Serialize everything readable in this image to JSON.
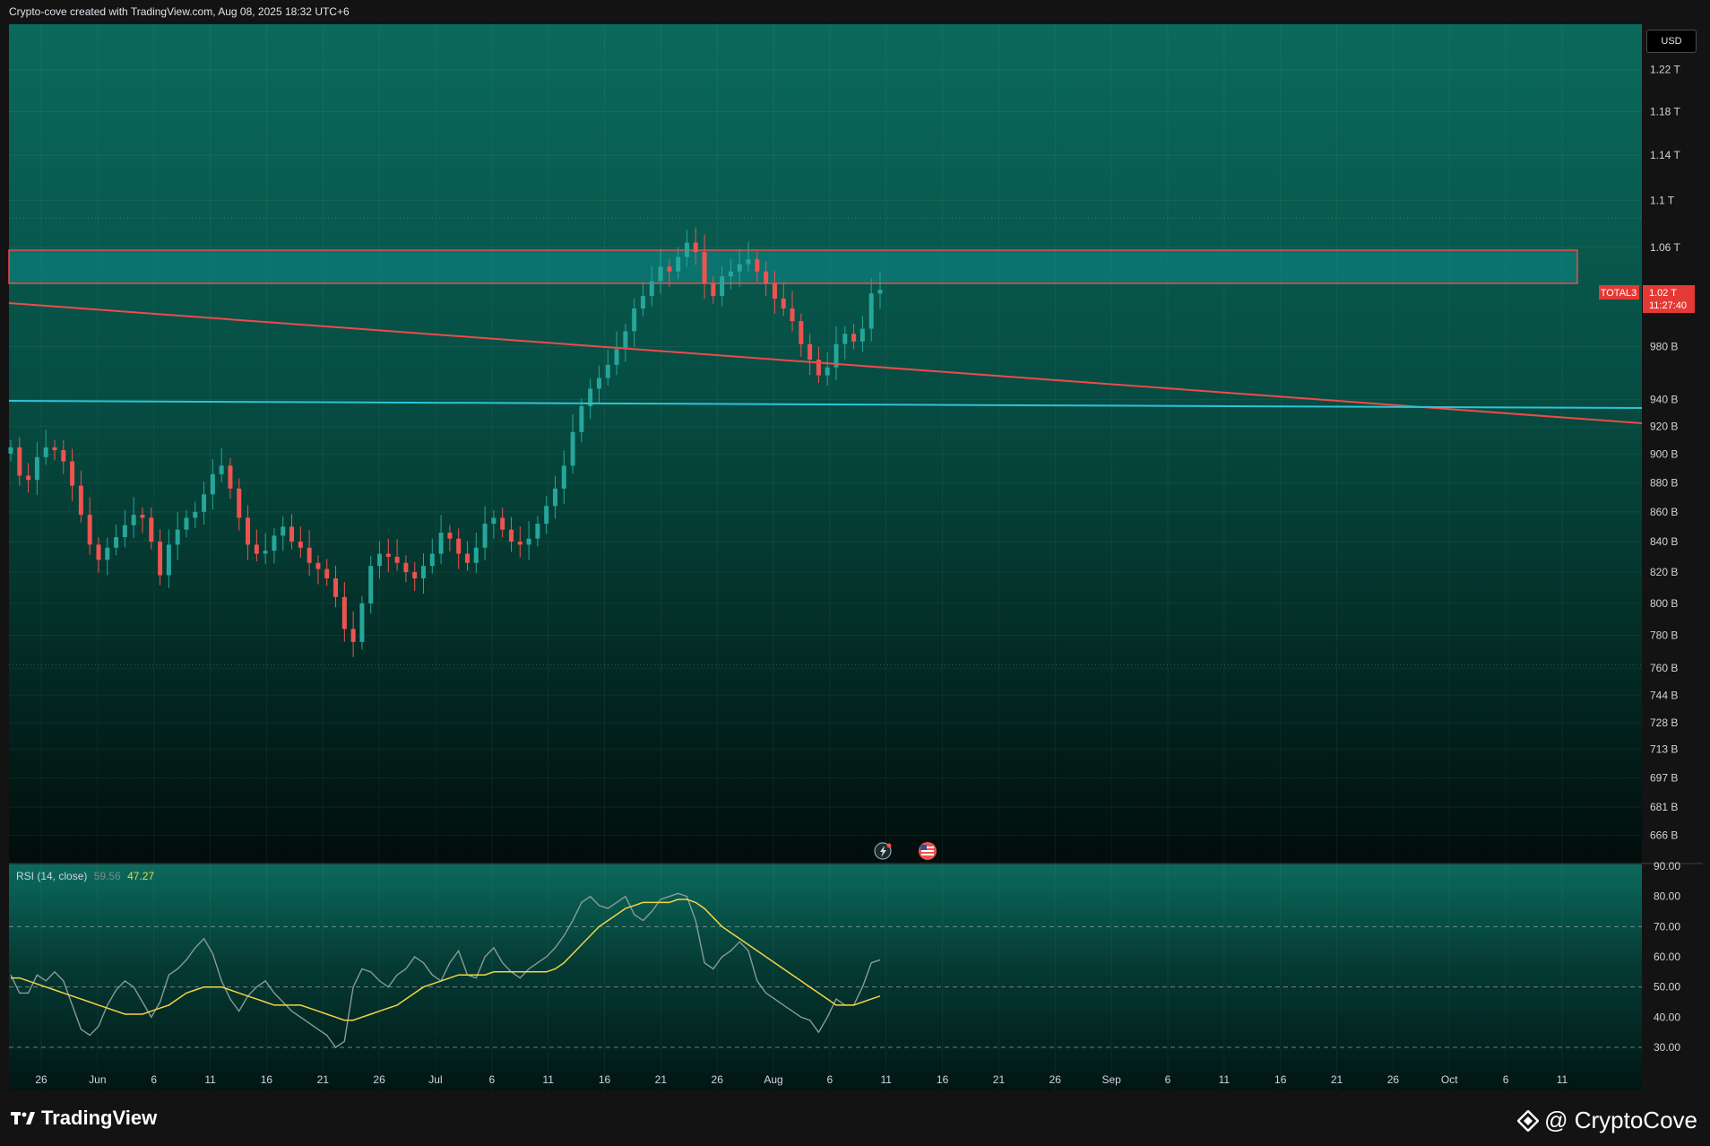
{
  "header": {
    "text": "Crypto-cove created with TradingView.com, Aug 08, 2025 18:32 UTC+6"
  },
  "currency": "USD",
  "symbol_tag": "TOTAL3",
  "last_price": "1.02 T",
  "countdown": "11:27:40",
  "rsi": {
    "label": "RSI (14, close)",
    "value_rsi": "59.56",
    "value_ma": "47.27"
  },
  "footer": {
    "left_brand": "TradingView",
    "right_brand": "@ CryptoCove"
  },
  "colors": {
    "bull": "#26a69a",
    "bear": "#ef5350",
    "zone_border": "#f04a4a",
    "support": "#2ec4d6",
    "rsi_line": "#8a9a9a",
    "rsi_ma": "#f5d442"
  },
  "icons": [
    "tradingview-logo-icon",
    "binance-logo-icon",
    "lightning-event-icon",
    "us-flag-event-icon"
  ],
  "chart_data": [
    {
      "type": "candlestick",
      "y_scale": "log",
      "ylim": [
        655,
        1260
      ],
      "y_ticks": [
        "1.22 T",
        "1.18 T",
        "1.14 T",
        "1.1 T",
        "1.06 T",
        "980 B",
        "940 B",
        "920 B",
        "900 B",
        "880 B",
        "860 B",
        "840 B",
        "820 B",
        "800 B",
        "780 B",
        "760 B",
        "744 B",
        "728 B",
        "713 B",
        "697 B",
        "681 B",
        "666 B"
      ],
      "x_ticks": [
        "26",
        "Jun",
        "6",
        "11",
        "16",
        "21",
        "26",
        "Jul",
        "6",
        "11",
        "16",
        "21",
        "26",
        "Aug",
        "6",
        "11",
        "16",
        "21",
        "26",
        "Sep",
        "6",
        "11",
        "16",
        "21",
        "26",
        "Oct",
        "6",
        "11"
      ],
      "closes": [
        905,
        885,
        882,
        898,
        905,
        903,
        895,
        878,
        858,
        838,
        828,
        836,
        843,
        851,
        858,
        856,
        840,
        818,
        838,
        848,
        856,
        860,
        872,
        886,
        892,
        876,
        856,
        838,
        832,
        834,
        844,
        850,
        840,
        836,
        826,
        822,
        816,
        804,
        784,
        776,
        800,
        824,
        832,
        830,
        826,
        820,
        816,
        824,
        832,
        846,
        842,
        832,
        826,
        836,
        852,
        856,
        848,
        840,
        838,
        842,
        852,
        864,
        876,
        892,
        916,
        935,
        948,
        956,
        966,
        978,
        992,
        1010,
        1020,
        1032,
        1044,
        1040,
        1052,
        1064,
        1056,
        1030,
        1020,
        1036,
        1040,
        1046,
        1050,
        1040,
        1030,
        1018,
        1010,
        1000,
        982,
        970,
        958,
        964,
        982,
        990,
        984,
        994,
        1022,
        1025
      ]
    },
    {
      "type": "line",
      "name": "RSI (14, close)",
      "ylim": [
        30,
        90
      ],
      "y_ticks": [
        "90.00",
        "80.00",
        "70.00",
        "60.00",
        "50.00",
        "40.00",
        "30.00"
      ],
      "series": [
        {
          "name": "RSI",
          "values": [
            54,
            48,
            48,
            54,
            52,
            55,
            52,
            44,
            36,
            34,
            37,
            44,
            49,
            52,
            50,
            45,
            40,
            45,
            54,
            56,
            59,
            63,
            66,
            61,
            52,
            46,
            42,
            47,
            50,
            52,
            48,
            45,
            42,
            40,
            38,
            36,
            34,
            30,
            32,
            50,
            56,
            55,
            52,
            50,
            54,
            56,
            60,
            58,
            54,
            52,
            58,
            62,
            54,
            53,
            60,
            63,
            58,
            55,
            53,
            56,
            58,
            60,
            63,
            67,
            72,
            78,
            80,
            77,
            76,
            78,
            80,
            74,
            72,
            75,
            79,
            80,
            81,
            80,
            72,
            58,
            56,
            60,
            62,
            65,
            62,
            52,
            48,
            46,
            44,
            42,
            40,
            39,
            35,
            40,
            46,
            44,
            44,
            50,
            58,
            59
          ]
        },
        {
          "name": "MA",
          "values": [
            53,
            53,
            52,
            51,
            50,
            49,
            48,
            47,
            46,
            45,
            44,
            43,
            42,
            41,
            41,
            41,
            42,
            43,
            44,
            46,
            48,
            49,
            50,
            50,
            50,
            49,
            48,
            47,
            46,
            45,
            44,
            44,
            44,
            44,
            43,
            42,
            41,
            40,
            39,
            39,
            40,
            41,
            42,
            43,
            44,
            46,
            48,
            50,
            51,
            52,
            53,
            54,
            54,
            54,
            54,
            55,
            55,
            55,
            55,
            55,
            55,
            55,
            56,
            58,
            61,
            64,
            67,
            70,
            72,
            74,
            76,
            77,
            78,
            78,
            78,
            78,
            79,
            79,
            78,
            76,
            73,
            70,
            68,
            66,
            64,
            62,
            60,
            58,
            56,
            54,
            52,
            50,
            48,
            46,
            44,
            44,
            44,
            45,
            46,
            47
          ]
        }
      ]
    }
  ]
}
